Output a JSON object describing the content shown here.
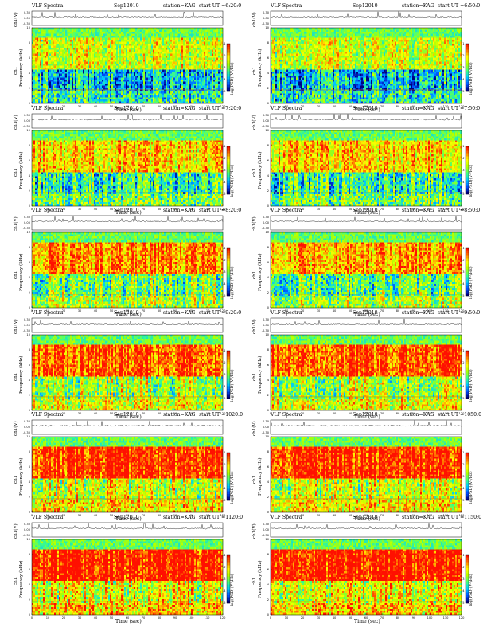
{
  "chart_data": {
    "type": "heatmap",
    "title": "VLF Spectra",
    "date": "Sep12010",
    "station": "station=KAG",
    "xlabel": "Time (sec)",
    "ylabel_ch": "ch1(V)",
    "ylabel_freq_prefix": "ch1",
    "ylabel_freq": "Frequency (kHz)",
    "colorbar_label": "log(PSD)(V²/Hz)",
    "xlim": [
      0,
      120
    ],
    "x_ticks": [
      0,
      10,
      20,
      30,
      40,
      50,
      60,
      70,
      80,
      90,
      100,
      110,
      120
    ],
    "freq_ylim": [
      0,
      10
    ],
    "freq_ticks": [
      0,
      2,
      4,
      6,
      8,
      10
    ],
    "volt_ylim": [
      -0.3,
      0.3
    ],
    "volt_ticks": [
      "0.30",
      "0.00",
      "-0.30"
    ],
    "colorbar_ticks": [
      "-1",
      "-2",
      "-3",
      "-4",
      "-5"
    ],
    "colormap": [
      "#00007f",
      "#0050ff",
      "#00c8ff",
      "#40ff80",
      "#b0ff00",
      "#ffff00",
      "#ff8000",
      "#ff1000"
    ],
    "panels": [
      {
        "start_ut": "start UT =6:20:0",
        "intensity": 0.45
      },
      {
        "start_ut": "start UT =6:50:0",
        "intensity": 0.42
      },
      {
        "start_ut": "start UT =7:20:0",
        "intensity": 0.55
      },
      {
        "start_ut": "start UT =7:50:0",
        "intensity": 0.55
      },
      {
        "start_ut": "start UT =8:20:0",
        "intensity": 0.65
      },
      {
        "start_ut": "start UT =8:50:0",
        "intensity": 0.62
      },
      {
        "start_ut": "start UT =9:20:0",
        "intensity": 0.72
      },
      {
        "start_ut": "start UT =9:50:0",
        "intensity": 0.72
      },
      {
        "start_ut": "start UT =1020:0",
        "intensity": 0.78
      },
      {
        "start_ut": "start UT =1050:0",
        "intensity": 0.78
      },
      {
        "start_ut": "start UT =1120:0",
        "intensity": 0.8
      },
      {
        "start_ut": "start UT =1150:0",
        "intensity": 0.8
      }
    ]
  }
}
